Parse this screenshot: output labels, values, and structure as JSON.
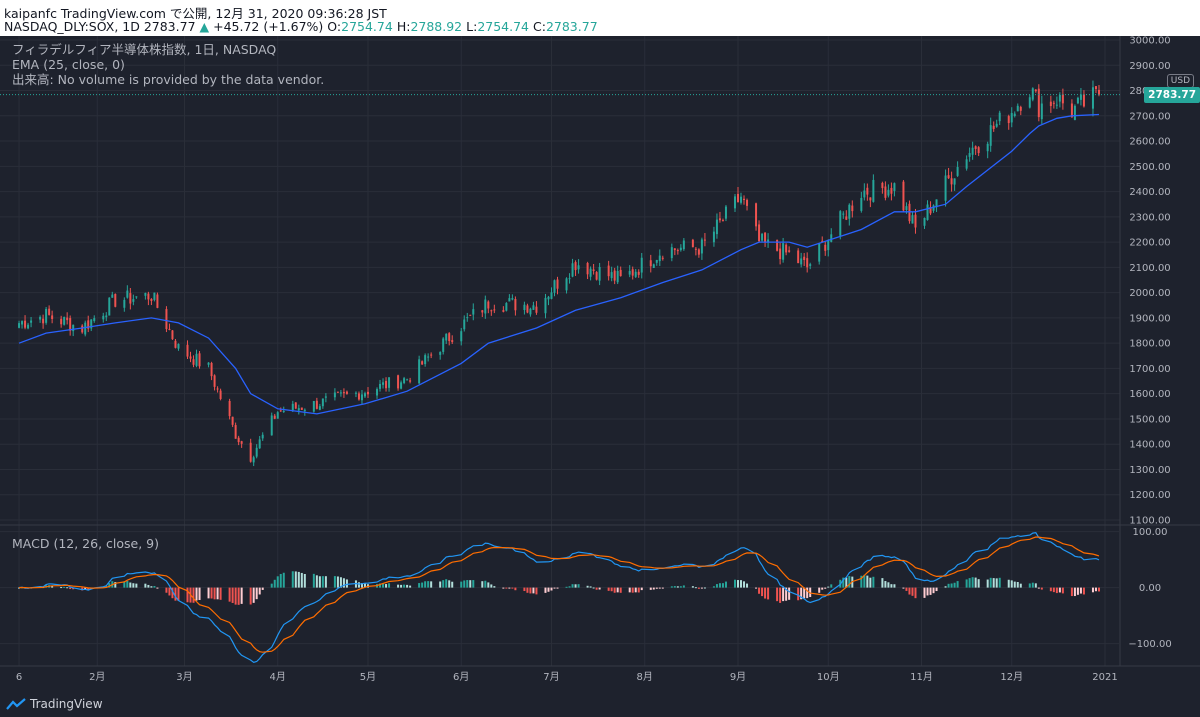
{
  "header": {
    "line1": "kaipanfc TradingView.com で公開, 12月 31, 2020 09:36:28 JST",
    "symbol": "NASDAQ_DLY:SOX, 1D",
    "close_price": "2783.77",
    "change_arrow": "▲",
    "change": "+45.72 (+1.67%)",
    "o_label": "O:",
    "o_val": "2754.74",
    "h_label": "H:",
    "h_val": "2788.92",
    "l_label": "L:",
    "l_val": "2754.74",
    "c_label": "C:",
    "c_val": "2783.77"
  },
  "legend": {
    "title": "フィラデルフィア半導体株指数, 1日, NASDAQ",
    "ema": "EMA (25, close, 0)",
    "volume": "出来高: No volume is provided by the data vendor.",
    "macd": "MACD (12, 26, close, 9)"
  },
  "price_axis": {
    "currency": "USD",
    "last_price_badge": "2783.77"
  },
  "footer": {
    "brand": "TradingView"
  },
  "colors": {
    "background": "#1e222d",
    "up": "#26a69a",
    "down": "#ef5350",
    "ema": "#2962ff",
    "macd_line": "#2196f3",
    "signal_line": "#ff6d00",
    "grid": "#2a2e39"
  },
  "chart_data": [
    {
      "type": "candlestick",
      "title": "フィラデルフィア半導体株指数, 1日, NASDAQ",
      "series": [
        {
          "name": "NASDAQ_DLY:SOX",
          "kind": "candles"
        },
        {
          "name": "EMA (25, close, 0)",
          "kind": "line"
        }
      ],
      "ylim": [
        1100,
        3000
      ],
      "y_ticks": [
        "1100.00",
        "1200.00",
        "1300.00",
        "1400.00",
        "1500.00",
        "1600.00",
        "1700.00",
        "1800.00",
        "1900.00",
        "2000.00",
        "2100.00",
        "2200.00",
        "2300.00",
        "2400.00",
        "2500.00",
        "2600.00",
        "2700.00",
        "2800.00",
        "2900.00",
        "3000.00"
      ],
      "x_ticks": [
        "6",
        "2月",
        "3月",
        "4月",
        "5月",
        "6月",
        "7月",
        "8月",
        "9月",
        "10月",
        "11月",
        "12月",
        "2021"
      ],
      "key_points": {
        "dates": [
          "2020-01-06",
          "2020-01-15",
          "2020-01-27",
          "2020-02-07",
          "2020-02-19",
          "2020-02-28",
          "2020-03-09",
          "2020-03-18",
          "2020-03-23",
          "2020-04-01",
          "2020-04-14",
          "2020-04-30",
          "2020-05-14",
          "2020-06-01",
          "2020-06-10",
          "2020-06-26",
          "2020-07-09",
          "2020-07-24",
          "2020-08-07",
          "2020-08-20",
          "2020-09-02",
          "2020-09-08",
          "2020-09-18",
          "2020-09-24",
          "2020-10-12",
          "2020-10-23",
          "2020-10-30",
          "2020-11-09",
          "2020-11-16",
          "2020-12-01",
          "2020-12-07",
          "2020-12-10",
          "2020-12-16",
          "2020-12-21",
          "2020-12-30"
        ],
        "close": [
          1880,
          1910,
          1860,
          1970,
          1990,
          1780,
          1700,
          1440,
          1350,
          1530,
          1560,
          1610,
          1660,
          1870,
          1960,
          1950,
          2120,
          2050,
          2170,
          2180,
          2380,
          2200,
          2150,
          2100,
          2400,
          2420,
          2250,
          2430,
          2550,
          2720,
          2810,
          2740,
          2770,
          2720,
          2783.77
        ],
        "ema25": [
          1800,
          1840,
          1860,
          1880,
          1900,
          1880,
          1820,
          1700,
          1600,
          1540,
          1520,
          1560,
          1610,
          1720,
          1800,
          1860,
          1930,
          1980,
          2040,
          2090,
          2170,
          2200,
          2200,
          2180,
          2250,
          2320,
          2320,
          2350,
          2420,
          2560,
          2630,
          2660,
          2690,
          2700,
          2705
        ]
      },
      "last_price": 2783.77
    },
    {
      "type": "line",
      "title": "MACD (12, 26, close, 9)",
      "series": [
        {
          "name": "MACD",
          "kind": "line"
        },
        {
          "name": "Signal",
          "kind": "line"
        },
        {
          "name": "Histogram",
          "kind": "bar"
        }
      ],
      "ylim": [
        -140,
        110
      ],
      "y_ticks": [
        "100.00",
        "0.00",
        "−100.00"
      ]
    }
  ]
}
